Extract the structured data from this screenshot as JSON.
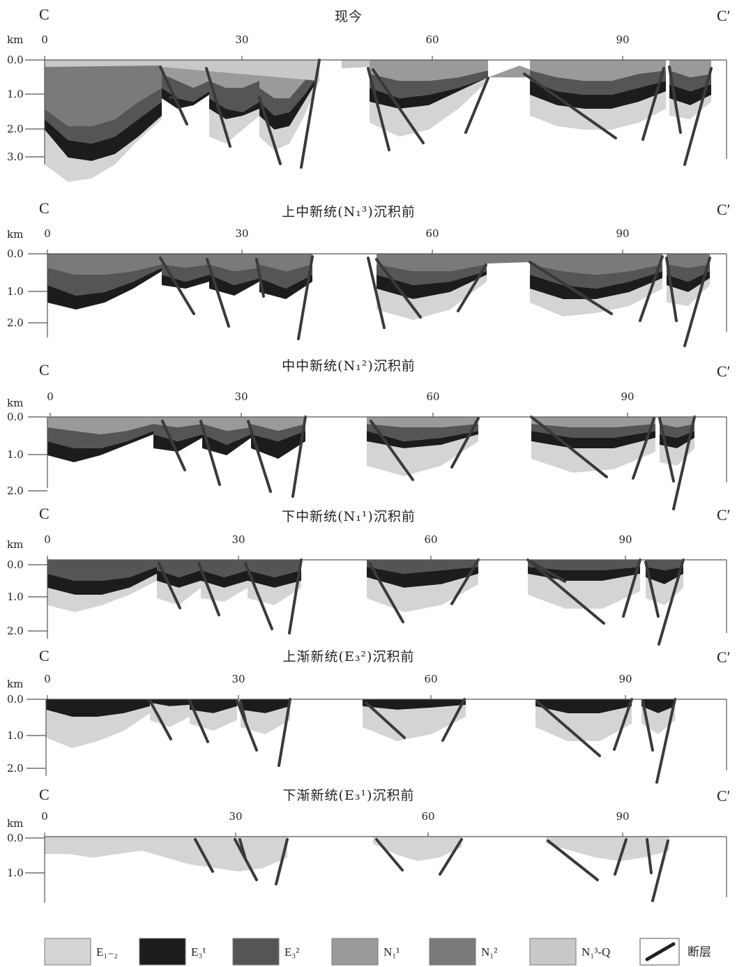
{
  "corner_left": "C",
  "corner_right": "C′",
  "unit": "km",
  "x_ticks": [
    "0",
    "30",
    "60",
    "90"
  ],
  "panels": [
    {
      "title": "现今",
      "depth_ticks": [
        "0.0",
        "1.0",
        "2.0",
        "3.0"
      ]
    },
    {
      "title": "上中新统(N₁³)沉积前",
      "depth_ticks": [
        "0.0",
        "1.0",
        "2.0"
      ]
    },
    {
      "title": "中中新统(N₁²)沉积前",
      "depth_ticks": [
        "0.0",
        "1.0",
        "2.0"
      ]
    },
    {
      "title": "下中新统(N₁¹)沉积前",
      "depth_ticks": [
        "0.0",
        "1.0",
        "2.0"
      ]
    },
    {
      "title": "上渐新统(E₃²)沉积前",
      "depth_ticks": [
        "0.0",
        "1.0",
        "2.0"
      ]
    },
    {
      "title": "下渐新统(E₃¹)沉积前",
      "depth_ticks": [
        "0.0",
        "1.0"
      ]
    }
  ],
  "legend": [
    {
      "label": "E₁₋₂",
      "color": "#d4d4d4"
    },
    {
      "label": "E₃¹",
      "color": "#1c1c1c"
    },
    {
      "label": "E₃²",
      "color": "#555555"
    },
    {
      "label": "N₁¹",
      "color": "#9a9a9a"
    },
    {
      "label": "N₁²",
      "color": "#7a7a7a"
    },
    {
      "label": "N₁³-Q",
      "color": "#c8c8c8"
    },
    {
      "label": "断层",
      "icon": "fault-line-icon"
    }
  ]
}
